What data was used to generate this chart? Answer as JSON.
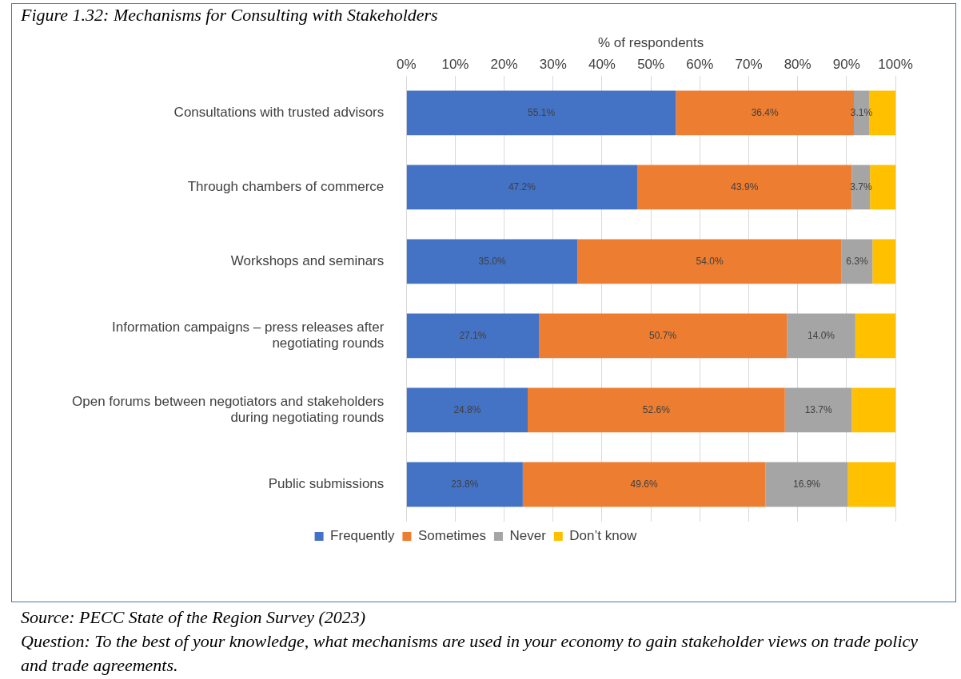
{
  "chart_data": {
    "type": "bar",
    "orientation": "horizontal",
    "stacked": true,
    "title": "Figure 1.32: Mechanisms for Consulting with Stakeholders",
    "xlabel": "% of respondents",
    "categories": [
      "Consultations with trusted advisors",
      "Through chambers of commerce",
      "Workshops and seminars",
      "Information campaigns – press releases after negotiating rounds",
      "Open forums between negotiators and stakeholders during negotiating rounds",
      "Public submissions"
    ],
    "series": [
      {
        "name": "Frequently",
        "color": "#4472c4",
        "values": [
          55.1,
          47.2,
          35.0,
          27.1,
          24.8,
          23.8
        ],
        "value_labels": [
          "55.1%",
          "47.2%",
          "35.0%",
          "27.1%",
          "24.8%",
          "23.8%"
        ]
      },
      {
        "name": "Sometimes",
        "color": "#ed7d31",
        "values": [
          36.4,
          43.9,
          54.0,
          50.7,
          52.6,
          49.6
        ],
        "value_labels": [
          "36.4%",
          "43.9%",
          "54.0%",
          "50.7%",
          "52.6%",
          "49.6%"
        ]
      },
      {
        "name": "Never",
        "color": "#a5a5a5",
        "values": [
          3.1,
          3.7,
          6.3,
          14.0,
          13.7,
          16.9
        ],
        "value_labels": [
          "3.1%",
          "3.7%",
          "6.3%",
          "14.0%",
          "13.7%",
          "16.9%"
        ]
      },
      {
        "name": "Don’t know",
        "color": "#ffc000",
        "values": [
          5.4,
          5.2,
          4.7,
          8.2,
          8.9,
          9.7
        ],
        "value_labels": [
          null,
          null,
          null,
          null,
          null,
          null
        ]
      }
    ],
    "xlim": [
      0,
      100
    ],
    "xticks": [
      {
        "value": 0,
        "label": "0%"
      },
      {
        "value": 10,
        "label": "10%"
      },
      {
        "value": 20,
        "label": "20%"
      },
      {
        "value": 30,
        "label": "30%"
      },
      {
        "value": 40,
        "label": "40%"
      },
      {
        "value": 50,
        "label": "50%"
      },
      {
        "value": 60,
        "label": "60%"
      },
      {
        "value": 70,
        "label": "70%"
      },
      {
        "value": 80,
        "label": "80%"
      },
      {
        "value": 90,
        "label": "90%"
      },
      {
        "value": 100,
        "label": "100%"
      }
    ],
    "grid": "x",
    "legend": "bottom",
    "annotations": [
      "Source: PECC State of the Region Survey (2023)",
      "Question: To the best of your knowledge, what mechanisms are used in your economy to gain stakeholder views on trade policy and trade agreements."
    ]
  }
}
